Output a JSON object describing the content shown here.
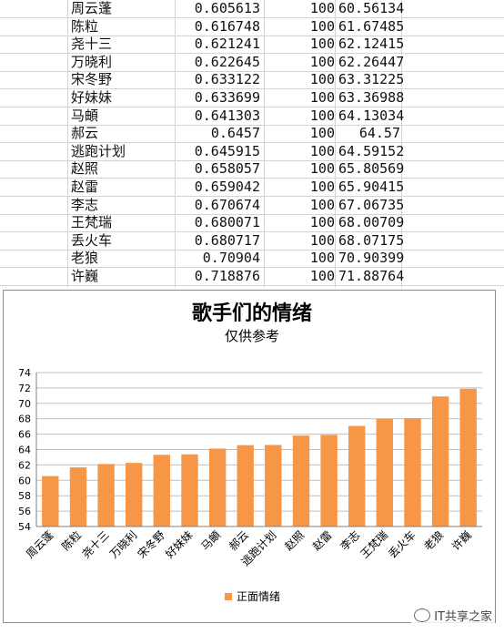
{
  "table": {
    "rows": [
      {
        "name": "周云蓬",
        "score": "0.605613",
        "base": "100",
        "pct": "60.56134"
      },
      {
        "name": "陈粒",
        "score": "0.616748",
        "base": "100",
        "pct": "61.67485"
      },
      {
        "name": "尧十三",
        "score": "0.621241",
        "base": "100",
        "pct": "62.12415"
      },
      {
        "name": "万晓利",
        "score": "0.622645",
        "base": "100",
        "pct": "62.26447"
      },
      {
        "name": "宋冬野",
        "score": "0.633122",
        "base": "100",
        "pct": "63.31225"
      },
      {
        "name": "好妹妹",
        "score": "0.633699",
        "base": "100",
        "pct": "63.36988"
      },
      {
        "name": "马頔",
        "score": "0.641303",
        "base": "100",
        "pct": "64.13034"
      },
      {
        "name": "郝云",
        "score": "0.6457",
        "base": "100",
        "pct": "64.57"
      },
      {
        "name": "逃跑计划",
        "score": "0.645915",
        "base": "100",
        "pct": "64.59152"
      },
      {
        "name": "赵照",
        "score": "0.658057",
        "base": "100",
        "pct": "65.80569"
      },
      {
        "name": "赵雷",
        "score": "0.659042",
        "base": "100",
        "pct": "65.90415"
      },
      {
        "name": "李志",
        "score": "0.670674",
        "base": "100",
        "pct": "67.06735"
      },
      {
        "name": "王梵瑞",
        "score": "0.680071",
        "base": "100",
        "pct": "68.00709"
      },
      {
        "name": "丢火车",
        "score": "0.680717",
        "base": "100",
        "pct": "68.07175"
      },
      {
        "name": "老狼",
        "score": "0.70904",
        "base": "100",
        "pct": "70.90399"
      },
      {
        "name": "许巍",
        "score": "0.718876",
        "base": "100",
        "pct": "71.88764"
      }
    ]
  },
  "chart_data": {
    "type": "bar",
    "title": "歌手们的情绪",
    "subtitle": "仅供参考",
    "categories": [
      "周云蓬",
      "陈粒",
      "尧十三",
      "万晓利",
      "宋冬野",
      "好妹妹",
      "马頔",
      "郝云",
      "逃跑计划",
      "赵照",
      "赵雷",
      "李志",
      "王梵瑞",
      "丢火车",
      "老狼",
      "许巍"
    ],
    "series": [
      {
        "name": "正面情绪",
        "values": [
          60.56134,
          61.67485,
          62.12415,
          62.26447,
          63.31225,
          63.36988,
          64.13034,
          64.57,
          64.59152,
          65.80569,
          65.90415,
          67.06735,
          68.00709,
          68.07175,
          70.90399,
          71.88764
        ]
      }
    ],
    "ylim": [
      54,
      74
    ],
    "yticks": [
      54,
      56,
      58,
      60,
      62,
      64,
      66,
      68,
      70,
      72,
      74
    ],
    "grid": true,
    "legend": "bottom",
    "bar_color": "#F79646"
  },
  "watermark": {
    "text": "IT共享之家"
  }
}
